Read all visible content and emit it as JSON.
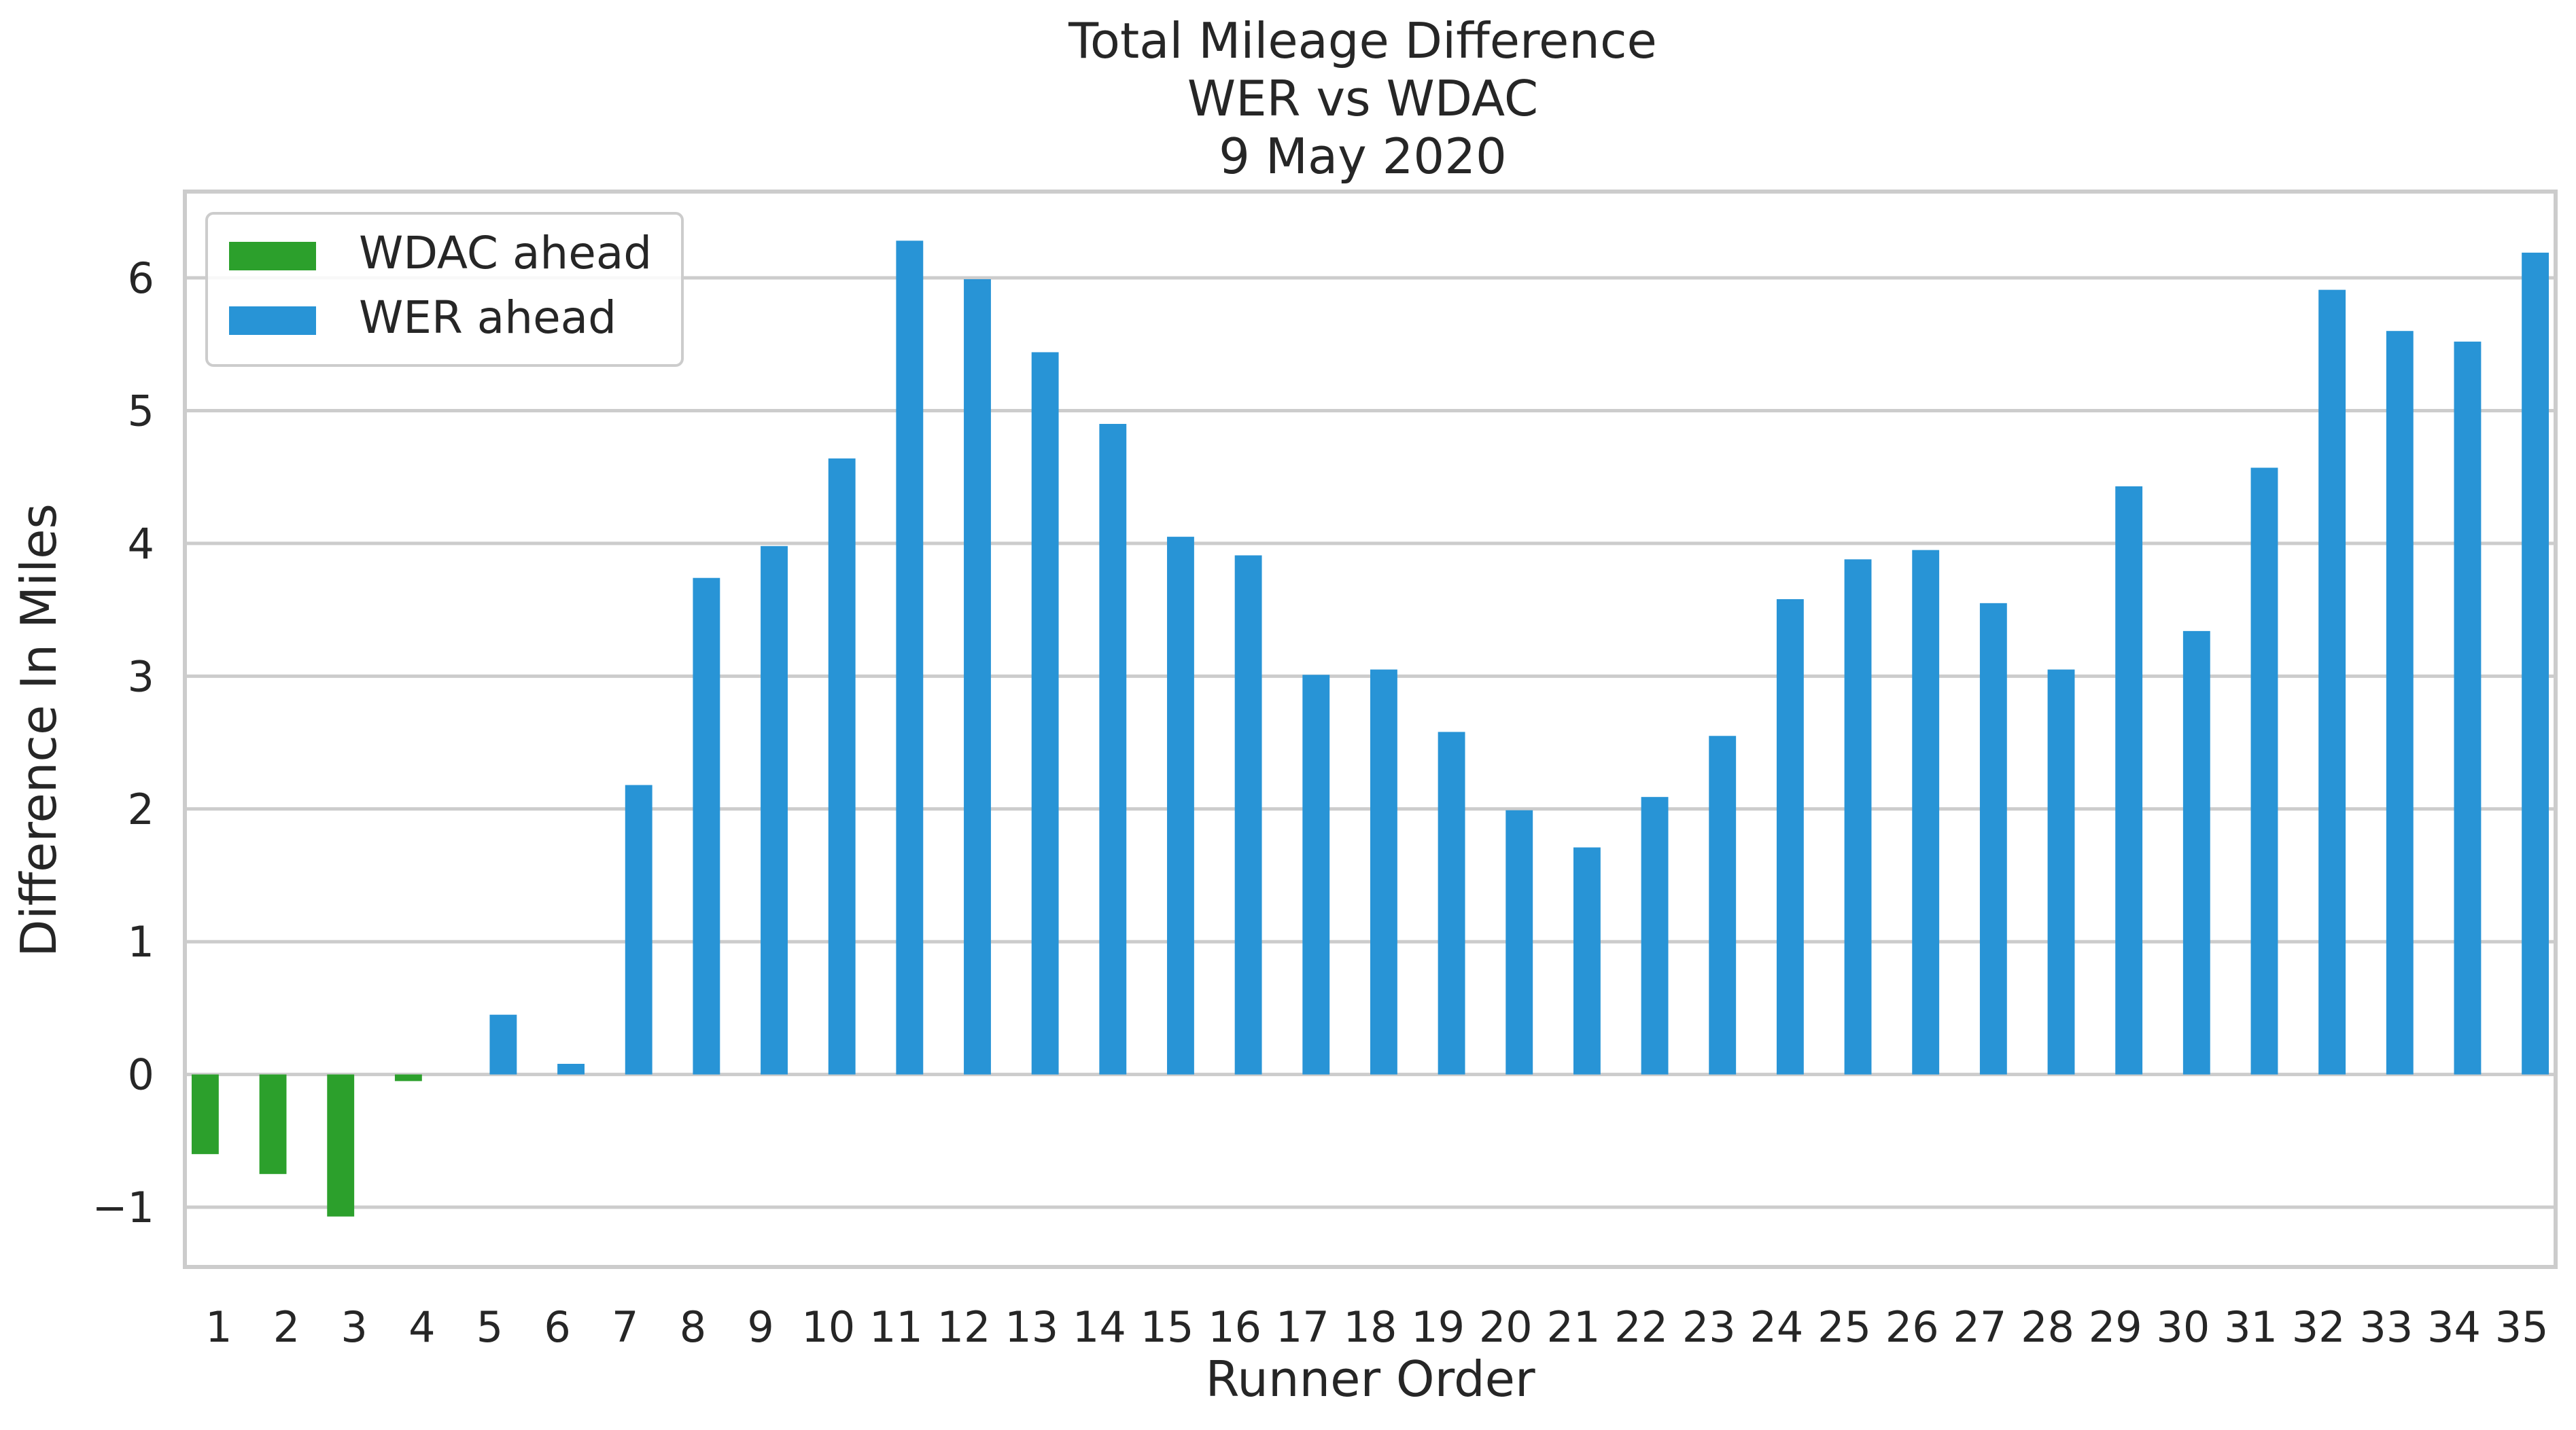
{
  "chart_data": {
    "type": "bar",
    "title_lines": [
      "Total Mileage Difference",
      "WER vs WDAC",
      "9 May 2020"
    ],
    "xlabel": "Runner Order",
    "ylabel": "Difference In Miles",
    "categories": [
      "1",
      "2",
      "3",
      "4",
      "5",
      "6",
      "7",
      "8",
      "9",
      "10",
      "11",
      "12",
      "13",
      "14",
      "15",
      "16",
      "17",
      "18",
      "19",
      "20",
      "21",
      "22",
      "23",
      "24",
      "25",
      "26",
      "27",
      "28",
      "29",
      "30",
      "31",
      "32",
      "33",
      "34",
      "35"
    ],
    "series": [
      {
        "name": "WDAC ahead",
        "color": "#2ca02c",
        "values": [
          -0.6,
          -0.75,
          -1.07,
          -0.05,
          null,
          null,
          null,
          null,
          null,
          null,
          null,
          null,
          null,
          null,
          null,
          null,
          null,
          null,
          null,
          null,
          null,
          null,
          null,
          null,
          null,
          null,
          null,
          null,
          null,
          null,
          null,
          null,
          null,
          null,
          null
        ]
      },
      {
        "name": "WER ahead",
        "color": "#2894d6",
        "values": [
          null,
          null,
          null,
          null,
          0.45,
          0.08,
          2.18,
          3.74,
          3.98,
          4.64,
          6.28,
          5.99,
          5.44,
          4.9,
          4.05,
          3.91,
          3.01,
          3.05,
          2.58,
          1.99,
          1.71,
          2.09,
          2.55,
          3.58,
          3.88,
          3.95,
          3.55,
          3.05,
          4.43,
          3.34,
          4.57,
          5.91,
          5.6,
          5.52,
          6.19
        ]
      }
    ],
    "ylim": [
      -1.45,
      6.65
    ],
    "yticks": [
      -1,
      0,
      1,
      2,
      3,
      4,
      5,
      6
    ],
    "ytick_labels": [
      "−1",
      "0",
      "1",
      "2",
      "3",
      "4",
      "5",
      "6"
    ],
    "grid": true,
    "legend_position": "top-left"
  }
}
